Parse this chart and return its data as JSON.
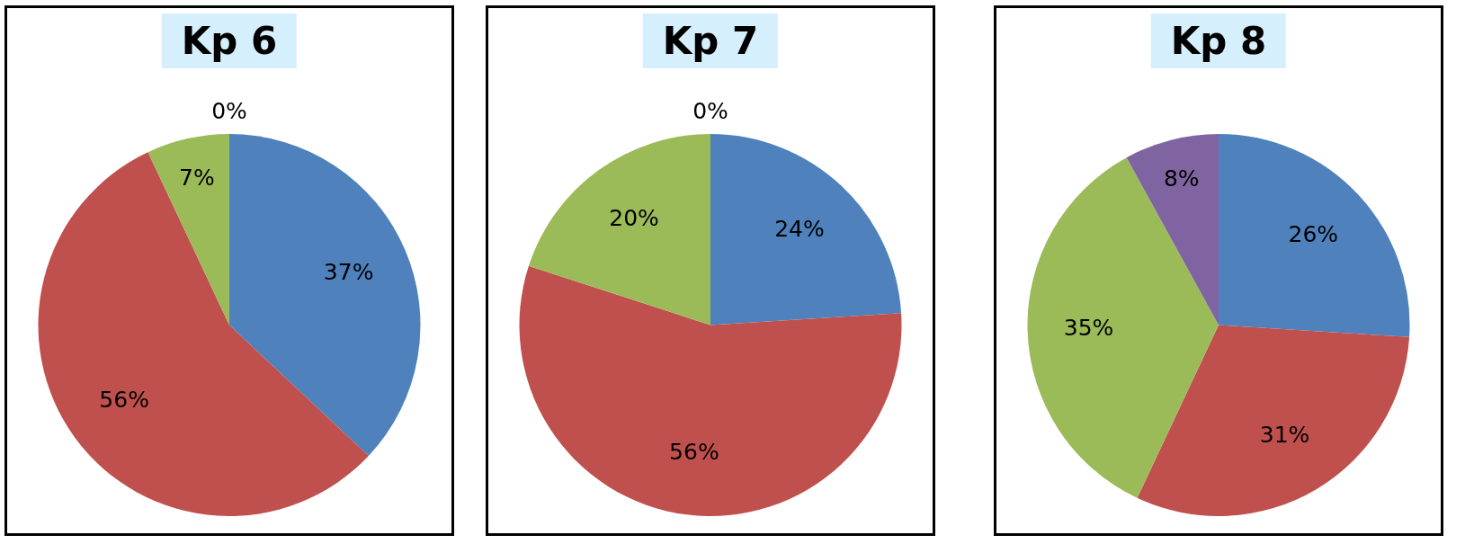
{
  "chart_data": [
    {
      "type": "pie",
      "title": "Kp 6",
      "categories": [
        null,
        null,
        null,
        null
      ],
      "values": [
        37,
        56,
        7,
        0
      ],
      "colors": [
        "#4f81bd",
        "#c0504d",
        "#9bbb59",
        "#8064a2"
      ],
      "value_labels": [
        "37%",
        "56%",
        "7%",
        "0%"
      ]
    },
    {
      "type": "pie",
      "title": "Kp 7",
      "categories": [
        null,
        null,
        null,
        null
      ],
      "values": [
        24,
        56,
        20,
        0
      ],
      "colors": [
        "#4f81bd",
        "#c0504d",
        "#9bbb59",
        "#8064a2"
      ],
      "value_labels": [
        "24%",
        "56%",
        "20%",
        "0%"
      ]
    },
    {
      "type": "pie",
      "title": "Kp 8",
      "categories": [
        null,
        null,
        null,
        null
      ],
      "values": [
        26,
        31,
        35,
        8
      ],
      "colors": [
        "#4f81bd",
        "#c0504d",
        "#9bbb59",
        "#8064a2"
      ],
      "value_labels": [
        "26%",
        "31%",
        "35%",
        "8%"
      ]
    }
  ]
}
